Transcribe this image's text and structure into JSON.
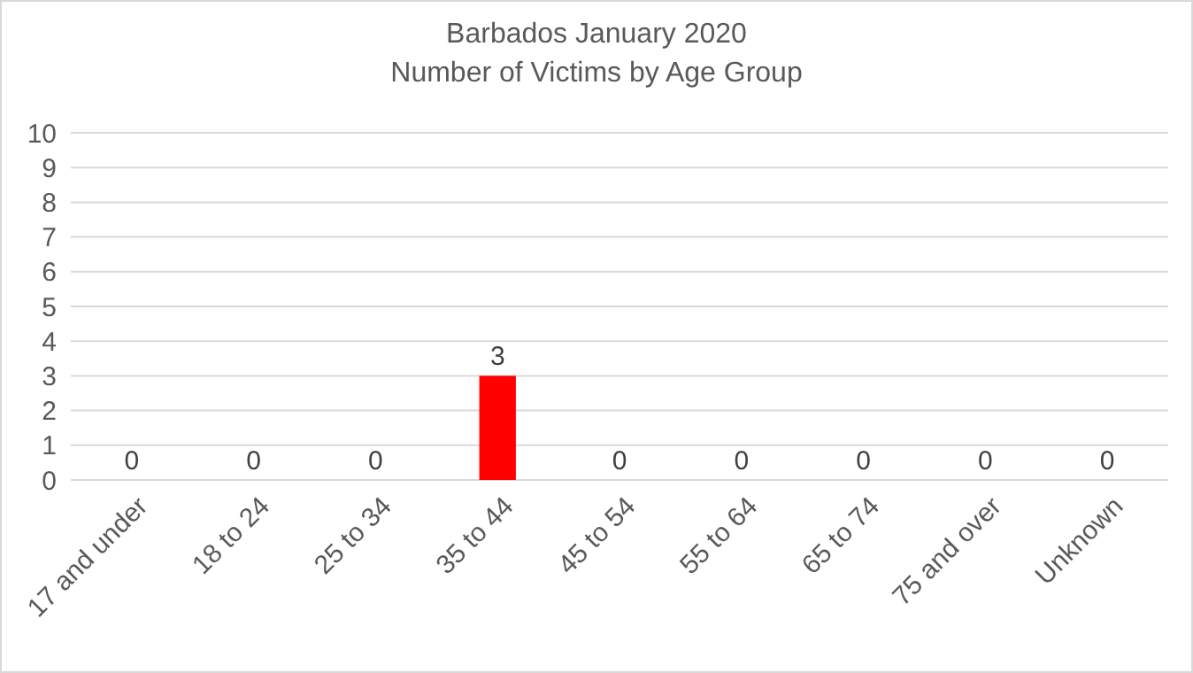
{
  "chart_data": {
    "type": "bar",
    "title": "Barbados January 2020",
    "subtitle": "Number of Victims by Age Group",
    "categories": [
      "17 and under",
      "18 to 24",
      "25 to 34",
      "35 to 44",
      "45 to 54",
      "55 to 64",
      "65 to 74",
      "75 and over",
      "Unknown"
    ],
    "values": [
      0,
      0,
      0,
      3,
      0,
      0,
      0,
      0,
      0
    ],
    "color": "#ff0000",
    "ylim": [
      0,
      10
    ],
    "yticks": [
      0,
      1,
      2,
      3,
      4,
      5,
      6,
      7,
      8,
      9,
      10
    ],
    "grid": "y",
    "data_labels": true
  }
}
